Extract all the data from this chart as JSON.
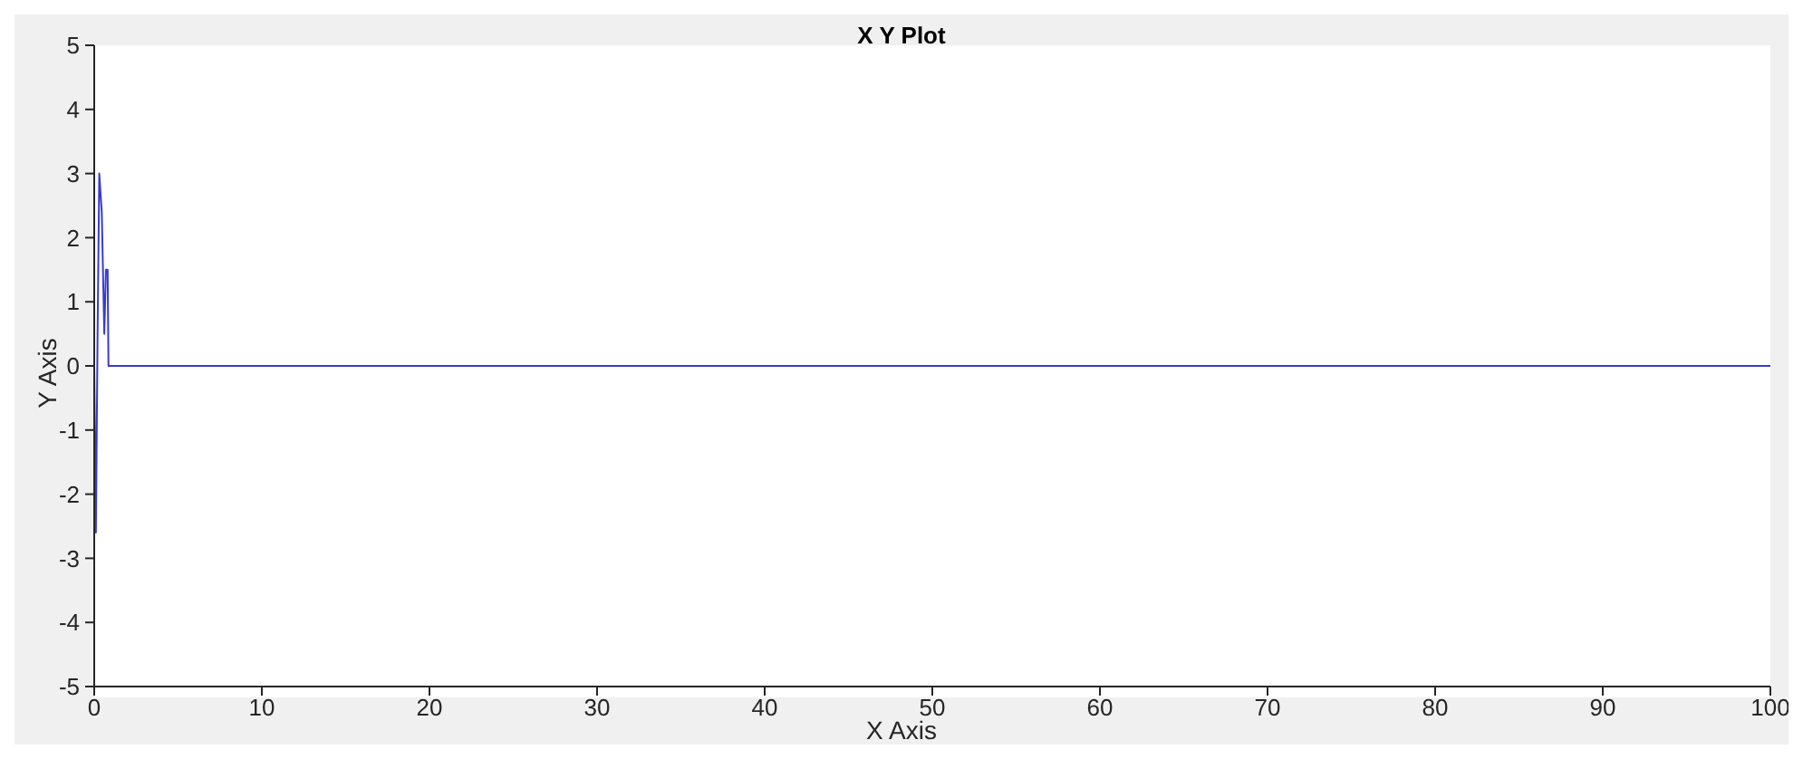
{
  "chart_data": {
    "type": "line",
    "title": "X Y Plot",
    "xlabel": "X Axis",
    "ylabel": "Y Axis",
    "series": [
      {
        "color": "#3a3ad0",
        "x": [
          0,
          0.1,
          0.2,
          0.3,
          0.45,
          0.6,
          0.7,
          0.8,
          0.85,
          1,
          5,
          10,
          20,
          30,
          40,
          50,
          60,
          70,
          80,
          90,
          100
        ],
        "values": [
          0,
          -2.6,
          0.5,
          3,
          2.4,
          0.5,
          1.5,
          1.5,
          0,
          0,
          0,
          0,
          0,
          0,
          0,
          0,
          0,
          0,
          0,
          0,
          0
        ]
      }
    ],
    "xlim": [
      0,
      100
    ],
    "xticks": [
      0,
      10,
      20,
      30,
      40,
      50,
      60,
      70,
      80,
      90,
      100
    ],
    "ylim": [
      -5,
      5
    ],
    "yticks": [
      -5,
      -4,
      -3,
      -2,
      -1,
      0,
      1,
      2,
      3,
      4,
      5
    ],
    "grid": false,
    "legend": false,
    "marker": "none",
    "line_style": "solid"
  }
}
